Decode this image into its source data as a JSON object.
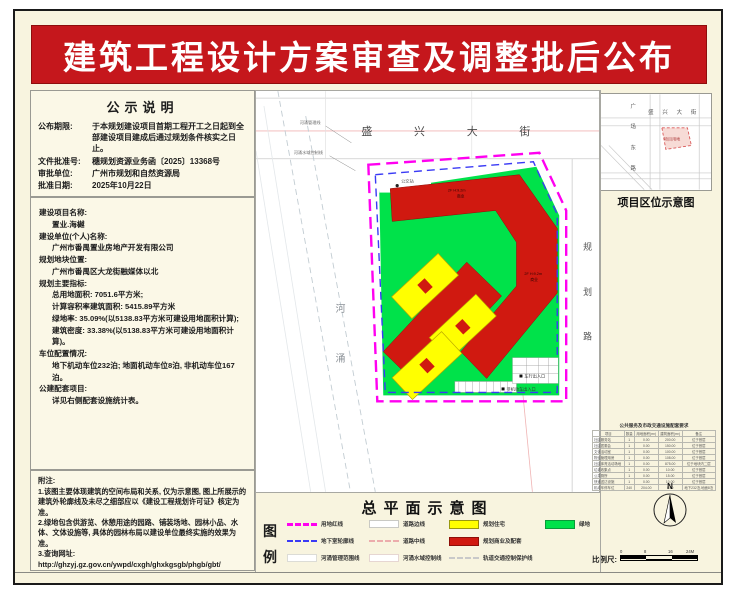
{
  "banner": {
    "title": "建筑工程设计方案审查及调整批后公布"
  },
  "notice": {
    "title": "公示说明",
    "rows": [
      {
        "label": "公布期限:",
        "value": "于本规划建设项目首期工程开工之日起到全部建设项目建成后通过规划条件核实之日止。"
      },
      {
        "label": "文件批准号:",
        "value": "穗规划资源业务函〔2025〕13368号"
      },
      {
        "label": "审批单位:",
        "value": "广州市规划和自然资源局"
      },
      {
        "label": "批准日期:",
        "value": "2025年10月22日"
      }
    ]
  },
  "project": {
    "lines": [
      {
        "text": "建设项目名称:",
        "indent": false
      },
      {
        "text": "置业.海樾",
        "indent": true
      },
      {
        "text": "建设单位(个人)名称:",
        "indent": false
      },
      {
        "text": "广州市番禺置业房地产开发有限公司",
        "indent": true
      },
      {
        "text": "规划地块位置:",
        "indent": false
      },
      {
        "text": "广州市番禺区大龙街融媒体以北",
        "indent": true
      },
      {
        "text": "规划主要指标:",
        "indent": false
      },
      {
        "text": "总用地面积: 7051.6平方米;",
        "indent": true
      },
      {
        "text": "计算容积率建筑面积: 5415.89平方米",
        "indent": true
      },
      {
        "text": "绿地率: 35.09%(以5138.83平方米可建设用地面积计算);",
        "indent": true
      },
      {
        "text": "建筑密度: 33.38%(以5138.83平方米可建设用地面积计算)。",
        "indent": true
      },
      {
        "text": "车位配置情况:",
        "indent": false
      },
      {
        "text": "地下机动车位232泊; 地面机动车位8泊, 非机动车位167泊。",
        "indent": true
      },
      {
        "text": "公建配套项目:",
        "indent": false
      },
      {
        "text": "详见右侧配套设施统计表。",
        "indent": true
      }
    ]
  },
  "notes": {
    "title": "附注:",
    "lines": [
      "1.该图主要体现建筑的空间布局和关系, 仅为示意图, 图上所展示的建筑外轮廓线及未尽之细部应以《建设工程规划许可证》核定为准。",
      "2.绿地包含供游览、休憩用途的园路、铺装场地、园林小品、水体、文体设施等, 具体的园林布局以建设单位最终实施的效果为准。",
      "3.查询网址:",
      "http://ghzyj.gz.gov.cn/ywpd/cxgh/ghxkgsgb/phgb/gbt/"
    ]
  },
  "map": {
    "street": "盛兴大街",
    "river": "河涌",
    "planned_road": "规划路",
    "bldg_floor": "2F H:9.2m",
    "bldg_use": "商业",
    "annotations": {
      "river_mgmt": "河涌管理线",
      "river_water": "河涌水域控制线",
      "bus_stop": "公交站",
      "vehicle_entry": "车行出入口",
      "nonmotor_entry": "非机动车出入口"
    }
  },
  "location_map": {
    "caption": "项目区位示意图",
    "street_h": "盛兴大街",
    "street_v": "广场东路",
    "site_label": "项目用地"
  },
  "facilities": {
    "title": "公共服务及市政交通设施配套要求",
    "headers": [
      "项目",
      "数量",
      "用地面积(m²)",
      "建筑面积(m²)",
      "备注"
    ],
    "rows": [
      [
        "社区服务站",
        "1",
        "0.00",
        "200.00",
        "位于首层"
      ],
      [
        "社区居委会",
        "1",
        "0.00",
        "150.00",
        "位于首层"
      ],
      [
        "文化活动室",
        "1",
        "0.00",
        "100.00",
        "位于首层"
      ],
      [
        "物业管理用房",
        "1",
        "0.00",
        "108.00",
        "位于首层"
      ],
      [
        "社区体育活动场地",
        "1",
        "0.00",
        "875.00",
        "位于地块内二层"
      ],
      [
        "垃圾收集点",
        "1",
        "0.00",
        "10.00",
        "位于首层"
      ],
      [
        "公共厕所",
        "1",
        "0.00",
        "15.00",
        "位于首层"
      ],
      [
        "快递送达设施",
        "1",
        "0.00",
        "10.00",
        "位于首层"
      ],
      [
        "机动车停车位",
        "240",
        "204.00",
        "0.00",
        "地下232泊,地面8泊"
      ]
    ]
  },
  "plan": {
    "title": "总平面示意图"
  },
  "legend": {
    "heading": "图例",
    "items": [
      {
        "type": "line-magenta",
        "label": "用地红线"
      },
      {
        "type": "box-road",
        "label": "道路边线"
      },
      {
        "type": "fill-yellow",
        "label": "规划住宅"
      },
      {
        "type": "fill-green",
        "label": "绿地"
      },
      {
        "type": "line-blue",
        "label": "地下室轮廓线"
      },
      {
        "type": "line-pink",
        "label": "道路中线"
      },
      {
        "type": "fill-red",
        "label": "规划商业及配套"
      },
      null,
      {
        "type": "box-river",
        "label": "河涌管理范围线"
      },
      {
        "type": "box-water",
        "label": "河涌水域控制线"
      },
      {
        "type": "line-graydash",
        "label": "轨道交通控制保护线"
      },
      null
    ]
  },
  "scale": {
    "label": "比例尺:",
    "ticks": [
      "0",
      "8",
      "16",
      "24M"
    ]
  },
  "compass": {
    "label": "N"
  },
  "colors": {
    "banner_red": "#c5171c",
    "site_magenta": "#ff00f0",
    "basement_blue": "#3a3af5",
    "green": "#00e24a",
    "residential_yellow": "#ffff00",
    "commercial_red": "#d01910"
  }
}
